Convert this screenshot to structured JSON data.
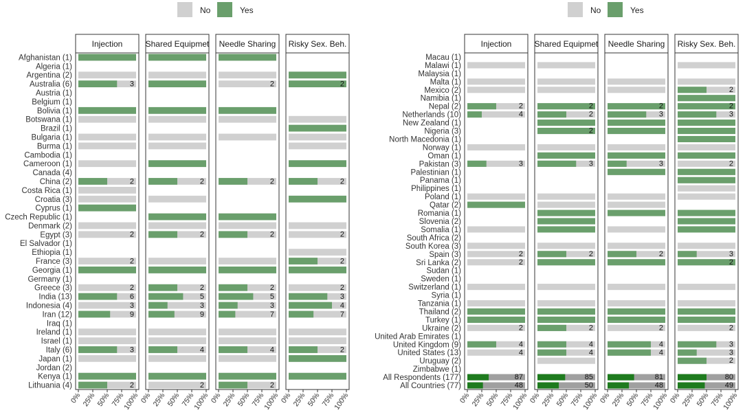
{
  "chart_data": [
    {
      "type": "bar",
      "subtype": "stacked-horizontal-faceted",
      "legend": {
        "placement": "top",
        "items": [
          {
            "label": "No",
            "color": "#d0d0d0"
          },
          {
            "label": "Yes",
            "color": "#6a9f6c"
          }
        ]
      },
      "panels": [
        "Injection",
        "Shared Equipmet",
        "Needle Sharing",
        "Risky Sex. Beh."
      ],
      "x_ticks": [
        "0%",
        "25%",
        "50%",
        "75%",
        "100%"
      ],
      "xlim": [
        0,
        1
      ],
      "categories": [
        "Afghanistan (1)",
        "Algeria (1)",
        "Argentina (2)",
        "Australia (6)",
        "Austria (1)",
        "Belgium (1)",
        "Bolivia (1)",
        "Botswana (1)",
        "Brazil (1)",
        "Bulgaria (1)",
        "Burma (1)",
        "Cambodia (1)",
        "Cameroon (1)",
        "Canada (4)",
        "China (2)",
        "Costa Rica (1)",
        "Croatia (3)",
        "Cyprus (1)",
        "Czech Republic (1)",
        "Denmark (2)",
        "Egypt (3)",
        "El Salvador (1)",
        "Ethiopia (1)",
        "France (3)",
        "Georgia (1)",
        "Germany (1)",
        "Greece (3)",
        "India (13)",
        "Indonesia (4)",
        "Iran (12)",
        "Iraq (1)",
        "Ireland (1)",
        "Israel (1)",
        "Italy (6)",
        "Japan (1)",
        "Jordan (2)",
        "Kenya (1)",
        "Lithuania (4)"
      ],
      "series": [
        {
          "name": "Injection",
          "yes_share": [
            1,
            null,
            0,
            0.67,
            null,
            null,
            1,
            0,
            null,
            0,
            0,
            null,
            0,
            null,
            0.5,
            0,
            0,
            1,
            null,
            0,
            0,
            null,
            null,
            0,
            1,
            null,
            0,
            0.67,
            0,
            0.55,
            null,
            0,
            0,
            0.67,
            0,
            null,
            1,
            0.5
          ],
          "label": [
            "",
            "",
            "",
            "3",
            "",
            "",
            "",
            "",
            "",
            "",
            "",
            "",
            "",
            "",
            "2",
            "",
            "",
            "",
            "",
            "",
            "2",
            "",
            "",
            "2",
            "",
            "",
            "2",
            "6",
            "3",
            "9",
            "",
            "",
            "",
            "3",
            "",
            "",
            "",
            "2"
          ]
        },
        {
          "name": "Shared Equipmet",
          "yes_share": [
            1,
            null,
            0,
            1,
            null,
            null,
            1,
            0,
            null,
            0,
            0,
            null,
            1,
            null,
            0.5,
            null,
            0,
            null,
            1,
            0,
            0.5,
            null,
            null,
            0,
            1,
            null,
            0.5,
            0.6,
            0.33,
            0.45,
            null,
            0,
            0,
            0.5,
            0,
            null,
            1,
            0
          ],
          "label": [
            "",
            "",
            "",
            "",
            "",
            "",
            "",
            "",
            "",
            "",
            "",
            "",
            "",
            "",
            "2",
            "",
            "",
            "",
            "",
            "",
            "2",
            "",
            "",
            "",
            "",
            "",
            "2",
            "5",
            "3",
            "9",
            "",
            "",
            "",
            "4",
            "",
            "",
            "",
            "2"
          ]
        },
        {
          "name": "Needle Sharing",
          "yes_share": [
            1,
            null,
            0,
            0,
            null,
            null,
            1,
            0,
            null,
            0,
            null,
            null,
            null,
            null,
            0.5,
            null,
            null,
            null,
            1,
            0,
            0.5,
            null,
            null,
            0,
            1,
            null,
            0.5,
            0.6,
            0.33,
            0.29,
            null,
            0,
            0,
            0.5,
            0,
            null,
            1,
            0.5
          ],
          "label": [
            "",
            "",
            "",
            "2",
            "",
            "",
            "",
            "",
            "",
            "",
            "",
            "",
            "",
            "",
            "2",
            "",
            "",
            "",
            "",
            "",
            "2",
            "",
            "",
            "",
            "",
            "",
            "2",
            "5",
            "3",
            "7",
            "",
            "",
            "",
            "4",
            "",
            "",
            "",
            "2"
          ]
        },
        {
          "name": "Risky Sex. Beh.",
          "yes_share": [
            null,
            null,
            1,
            1,
            null,
            null,
            null,
            0,
            1,
            0,
            0,
            null,
            1,
            null,
            0.5,
            null,
            1,
            null,
            null,
            0,
            0,
            null,
            0,
            0.5,
            1,
            null,
            0,
            0.67,
            0.75,
            0.43,
            null,
            0,
            0,
            0.5,
            1,
            null,
            1,
            null
          ],
          "label": [
            "",
            "",
            "",
            "2",
            "",
            "",
            "",
            "",
            "",
            "",
            "",
            "",
            "",
            "",
            "2",
            "",
            "",
            "",
            "",
            "",
            "2",
            "",
            "",
            "2",
            "",
            "",
            "2",
            "3",
            "4",
            "7",
            "",
            "",
            "",
            "2",
            "",
            "",
            "",
            ""
          ]
        }
      ]
    },
    {
      "type": "bar",
      "subtype": "stacked-horizontal-faceted",
      "legend": {
        "placement": "top",
        "items": [
          {
            "label": "No",
            "color": "#d0d0d0"
          },
          {
            "label": "Yes",
            "color": "#6a9f6c"
          }
        ]
      },
      "panels": [
        "Injection",
        "Shared Equipmet",
        "Needle Sharing",
        "Risky Sex. Beh."
      ],
      "x_ticks": [
        "0%",
        "25%",
        "50%",
        "75%",
        "100%"
      ],
      "xlim": [
        0,
        1
      ],
      "categories": [
        "Macau (1)",
        "Malawi (1)",
        "Malaysia (1)",
        "Malta (1)",
        "Mexico (2)",
        "Namibia (1)",
        "Nepal (2)",
        "Netherlands (10)",
        "New Zealand (1)",
        "Nigeria (3)",
        "North Macedonia (1)",
        "Norway (1)",
        "Oman (1)",
        "Pakistan (3)",
        "Palestinian (1)",
        "Panama (1)",
        "Philippines (1)",
        "Poland (1)",
        "Qatar (2)",
        "Romania (1)",
        "Slovenia (2)",
        "Somalia (1)",
        "South Africa (2)",
        "South Korea (3)",
        "Spain (3)",
        "Sri Lanka (2)",
        "Sudan (1)",
        "Sweden (1)",
        "Switzerland (1)",
        "Syria (1)",
        "Tanzania (1)",
        "Thailand (2)",
        "Turkey (1)",
        "Ukraine (2)",
        "United Arab Emirates (1)",
        "United Kingdom (9)",
        "United States (13)",
        "Uruguay (2)",
        "Zimbabwe (1)",
        "All Respondents (177)",
        "All Countries (77)"
      ],
      "summary_colors": {
        "yes": "#1e7b1e",
        "no": "#a0a0a0"
      },
      "series": [
        {
          "name": "Injection",
          "yes_share": [
            null,
            0,
            null,
            0,
            0,
            null,
            0.5,
            0.25,
            null,
            null,
            null,
            0,
            null,
            0.33,
            null,
            null,
            null,
            0,
            1,
            null,
            null,
            0,
            null,
            0,
            0,
            0,
            null,
            null,
            0,
            null,
            0,
            1,
            1,
            0,
            null,
            0.5,
            0,
            null,
            null,
            0.37,
            0.27
          ],
          "label": [
            "",
            "",
            "",
            "",
            "",
            "",
            "2",
            "4",
            "",
            "",
            "",
            "",
            "",
            "3",
            "",
            "",
            "",
            "",
            "",
            "",
            "",
            "",
            "",
            "",
            "2",
            "2",
            "",
            "",
            "",
            "",
            "",
            "",
            "",
            "2",
            "",
            "4",
            "4",
            "",
            "",
            "87",
            "48"
          ]
        },
        {
          "name": "Shared Equipmet",
          "yes_share": [
            null,
            0,
            null,
            0,
            0,
            null,
            1,
            0.5,
            1,
            1,
            null,
            0,
            1,
            0.67,
            null,
            null,
            null,
            0,
            0,
            1,
            1,
            1,
            null,
            0,
            0.5,
            1,
            null,
            null,
            0,
            null,
            0,
            1,
            1,
            0.5,
            null,
            0.5,
            0.5,
            0,
            null,
            0.48,
            0.37
          ],
          "label": [
            "",
            "",
            "",
            "",
            "",
            "",
            "2",
            "2",
            "",
            "2",
            "",
            "",
            "",
            "3",
            "",
            "",
            "",
            "",
            "",
            "",
            "",
            "",
            "",
            "",
            "2",
            "",
            "",
            "",
            "",
            "",
            "",
            "",
            "",
            "2",
            "",
            "4",
            "4",
            "",
            "",
            "85",
            "50"
          ]
        },
        {
          "name": "Needle Sharing",
          "yes_share": [
            null,
            null,
            null,
            0,
            0,
            null,
            1,
            0.67,
            1,
            1,
            null,
            0,
            1,
            0.33,
            1,
            null,
            null,
            0,
            0,
            1,
            null,
            0,
            null,
            0,
            0.5,
            1,
            null,
            null,
            0,
            null,
            0,
            1,
            1,
            0,
            null,
            0.75,
            0.75,
            null,
            null,
            0.46,
            0.37
          ],
          "label": [
            "",
            "",
            "",
            "",
            "",
            "",
            "2",
            "3",
            "",
            "",
            "",
            "",
            "",
            "3",
            "",
            "",
            "",
            "",
            "",
            "",
            "",
            "",
            "",
            "",
            "2",
            "",
            "",
            "",
            "",
            "",
            "",
            "",
            "",
            "2",
            "",
            "4",
            "4",
            "",
            "",
            "81",
            "48"
          ]
        },
        {
          "name": "Risky Sex. Beh.",
          "yes_share": [
            null,
            0,
            null,
            0,
            0.5,
            1,
            1,
            0.67,
            1,
            1,
            1,
            0,
            1,
            0,
            1,
            1,
            0,
            0,
            null,
            1,
            1,
            1,
            null,
            0,
            0.33,
            1,
            null,
            null,
            0,
            null,
            0,
            1,
            1,
            0,
            null,
            0.67,
            0.33,
            0.5,
            null,
            0.5,
            0.47
          ],
          "label": [
            "",
            "",
            "",
            "",
            "2",
            "",
            "2",
            "3",
            "",
            "",
            "",
            "",
            "",
            "2",
            "",
            "",
            "",
            "",
            "",
            "",
            "",
            "",
            "",
            "",
            "3",
            "2",
            "",
            "",
            "",
            "",
            "",
            "",
            "",
            "2",
            "",
            "3",
            "3",
            "2",
            "",
            "80",
            "49"
          ]
        }
      ]
    }
  ]
}
